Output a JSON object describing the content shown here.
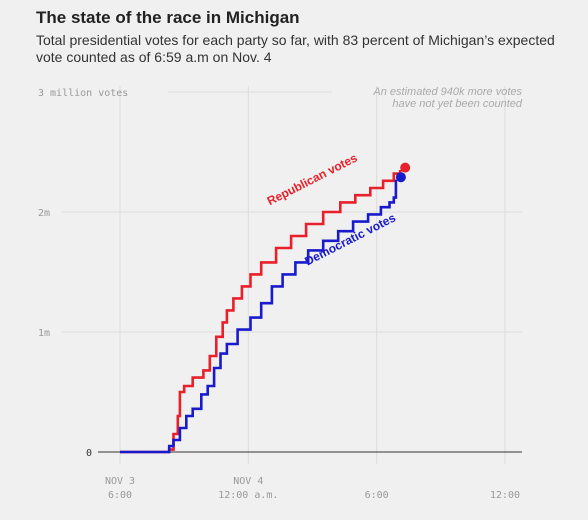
{
  "header": {
    "title": "The state of the race in Michigan",
    "subtitle": "Total presidential votes for each party so far, with 83 percent of Michigan’s expected vote counted as of 6:59 a.m on Nov. 4"
  },
  "chart_data": {
    "type": "line",
    "title": "The state of the race in Michigan",
    "subtitle": "Total presidential votes for each party so far, with 83 percent of Michigan’s expected vote counted as of 6:59 a.m on Nov. 4",
    "x_unit": "hours since Nov 3 6:00 p.m.",
    "xlim": [
      0,
      18
    ],
    "ylim": [
      0,
      3
    ],
    "y_unit": "million votes",
    "grid": true,
    "x_ticks": [
      {
        "value": 0,
        "line1": "NOV 3",
        "line2": "6:00"
      },
      {
        "value": 6,
        "line1": "NOV 4",
        "line2": "12:00 a.m."
      },
      {
        "value": 12,
        "line1": "",
        "line2": "6:00"
      },
      {
        "value": 18,
        "line1": "",
        "line2": "12:00"
      }
    ],
    "y_ticks": [
      {
        "value": 0,
        "label": "0"
      },
      {
        "value": 1,
        "label": "1m"
      },
      {
        "value": 2,
        "label": "2m"
      },
      {
        "value": 3,
        "label": "3 million votes"
      }
    ],
    "annotation": [
      "An estimated 940k more votes",
      "have not yet been counted"
    ],
    "series": [
      {
        "name": "Republican votes",
        "color": "#e8202a",
        "points": [
          [
            0,
            0
          ],
          [
            2.0,
            0
          ],
          [
            2.3,
            0.02
          ],
          [
            2.5,
            0.15
          ],
          [
            2.7,
            0.3
          ],
          [
            2.8,
            0.5
          ],
          [
            3.0,
            0.55
          ],
          [
            3.4,
            0.62
          ],
          [
            3.9,
            0.68
          ],
          [
            4.2,
            0.8
          ],
          [
            4.5,
            0.96
          ],
          [
            4.8,
            1.08
          ],
          [
            5.0,
            1.18
          ],
          [
            5.3,
            1.28
          ],
          [
            5.7,
            1.38
          ],
          [
            6.1,
            1.48
          ],
          [
            6.6,
            1.58
          ],
          [
            7.3,
            1.7
          ],
          [
            8.0,
            1.8
          ],
          [
            8.7,
            1.9
          ],
          [
            9.5,
            2.0
          ],
          [
            10.3,
            2.08
          ],
          [
            11.0,
            2.14
          ],
          [
            11.7,
            2.2
          ],
          [
            12.3,
            2.26
          ],
          [
            12.8,
            2.32
          ],
          [
            13.1,
            2.35
          ]
        ],
        "final_value": 2.37
      },
      {
        "name": "Democratic votes",
        "color": "#1a1acd",
        "points": [
          [
            0,
            0
          ],
          [
            2.0,
            0
          ],
          [
            2.3,
            0.05
          ],
          [
            2.5,
            0.1
          ],
          [
            2.8,
            0.2
          ],
          [
            3.1,
            0.3
          ],
          [
            3.4,
            0.36
          ],
          [
            3.8,
            0.48
          ],
          [
            4.1,
            0.55
          ],
          [
            4.4,
            0.7
          ],
          [
            4.7,
            0.82
          ],
          [
            5.0,
            0.9
          ],
          [
            5.5,
            1.02
          ],
          [
            6.1,
            1.12
          ],
          [
            6.6,
            1.24
          ],
          [
            7.1,
            1.38
          ],
          [
            7.6,
            1.48
          ],
          [
            8.2,
            1.58
          ],
          [
            8.8,
            1.68
          ],
          [
            9.5,
            1.76
          ],
          [
            10.2,
            1.84
          ],
          [
            10.9,
            1.92
          ],
          [
            11.6,
            1.98
          ],
          [
            12.2,
            2.04
          ],
          [
            12.6,
            2.08
          ],
          [
            12.8,
            2.12
          ],
          [
            12.9,
            2.27
          ]
        ],
        "final_value": 2.29
      }
    ]
  }
}
